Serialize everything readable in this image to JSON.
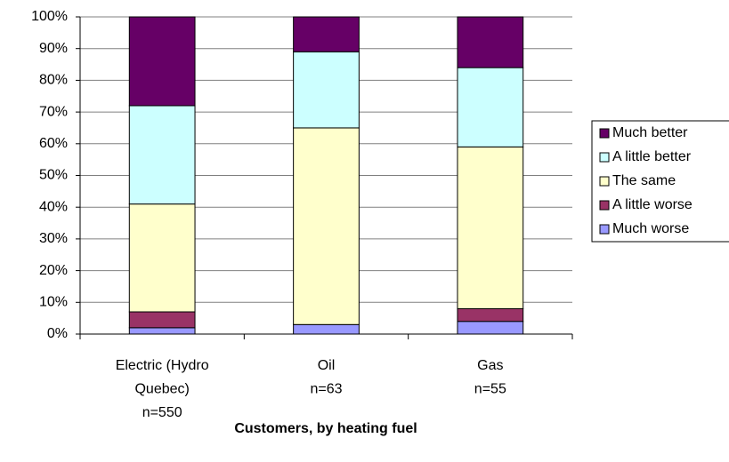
{
  "chart_data": {
    "type": "stacked_bar",
    "x_label": "Customers, by heating fuel",
    "categories": [
      [
        "Electric (Hydro",
        "Quebec)",
        "n=550"
      ],
      [
        "Oil",
        "n=63"
      ],
      [
        "Gas",
        "n=55"
      ]
    ],
    "series": [
      {
        "name": "Much worse",
        "color": "#9999ff",
        "values": [
          2,
          3,
          4
        ]
      },
      {
        "name": "A little worse",
        "color": "#993366",
        "values": [
          5,
          0,
          4
        ]
      },
      {
        "name": "The same",
        "color": "#ffffcc",
        "values": [
          34,
          62,
          51
        ]
      },
      {
        "name": "A little better",
        "color": "#ccffff",
        "values": [
          31,
          24,
          25
        ]
      },
      {
        "name": "Much better",
        "color": "#660066",
        "values": [
          28,
          11,
          16
        ]
      }
    ],
    "ylim": [
      0,
      100
    ],
    "yticks": [
      {
        "value": 0,
        "label": "0%"
      },
      {
        "value": 10,
        "label": "10%"
      },
      {
        "value": 20,
        "label": "20%"
      },
      {
        "value": 30,
        "label": "30%"
      },
      {
        "value": 40,
        "label": "40%"
      },
      {
        "value": 50,
        "label": "50%"
      },
      {
        "value": 60,
        "label": "60%"
      },
      {
        "value": 70,
        "label": "70%"
      },
      {
        "value": 80,
        "label": "80%"
      },
      {
        "value": 90,
        "label": "90%"
      },
      {
        "value": 100,
        "label": "100%"
      }
    ],
    "grid": true,
    "legend": "right"
  }
}
